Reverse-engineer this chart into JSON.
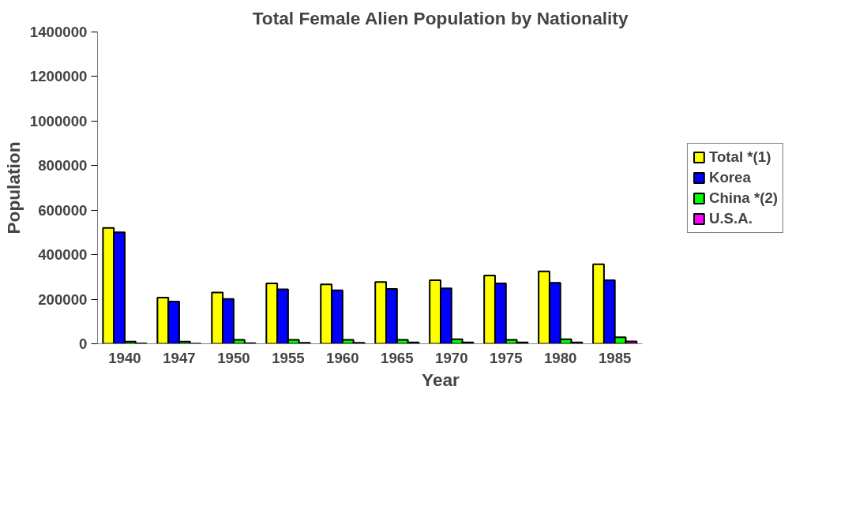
{
  "chart_data": {
    "type": "bar",
    "title": "Total Female Alien Population by Nationality",
    "xlabel": "Year",
    "ylabel": "Population",
    "categories": [
      "1940",
      "1947",
      "1950",
      "1955",
      "1960",
      "1965",
      "1970",
      "1975",
      "1980",
      "1985"
    ],
    "series": [
      {
        "name": "Total *(1)",
        "color": "#ffff00",
        "values": [
          520000,
          207000,
          230000,
          271000,
          267000,
          277000,
          285000,
          307000,
          325000,
          357000
        ]
      },
      {
        "name": "Korea",
        "color": "#0000ff",
        "values": [
          501000,
          190000,
          201000,
          245000,
          240000,
          246000,
          249000,
          271000,
          274000,
          285000
        ]
      },
      {
        "name": "China *(2)",
        "color": "#00ff00",
        "values": [
          10000,
          10000,
          18000,
          18000,
          18000,
          18000,
          20000,
          18000,
          20000,
          29000
        ]
      },
      {
        "name": "U.S.A.",
        "color": "#ff00ff",
        "values": [
          2000,
          1000,
          3000,
          4000,
          4000,
          6000,
          6000,
          6000,
          6000,
          11000
        ]
      }
    ],
    "ylim": [
      0,
      1400000
    ],
    "yticks": [
      0,
      200000,
      400000,
      600000,
      800000,
      1000000,
      1200000,
      1400000
    ],
    "grid": false,
    "legend": "right"
  }
}
